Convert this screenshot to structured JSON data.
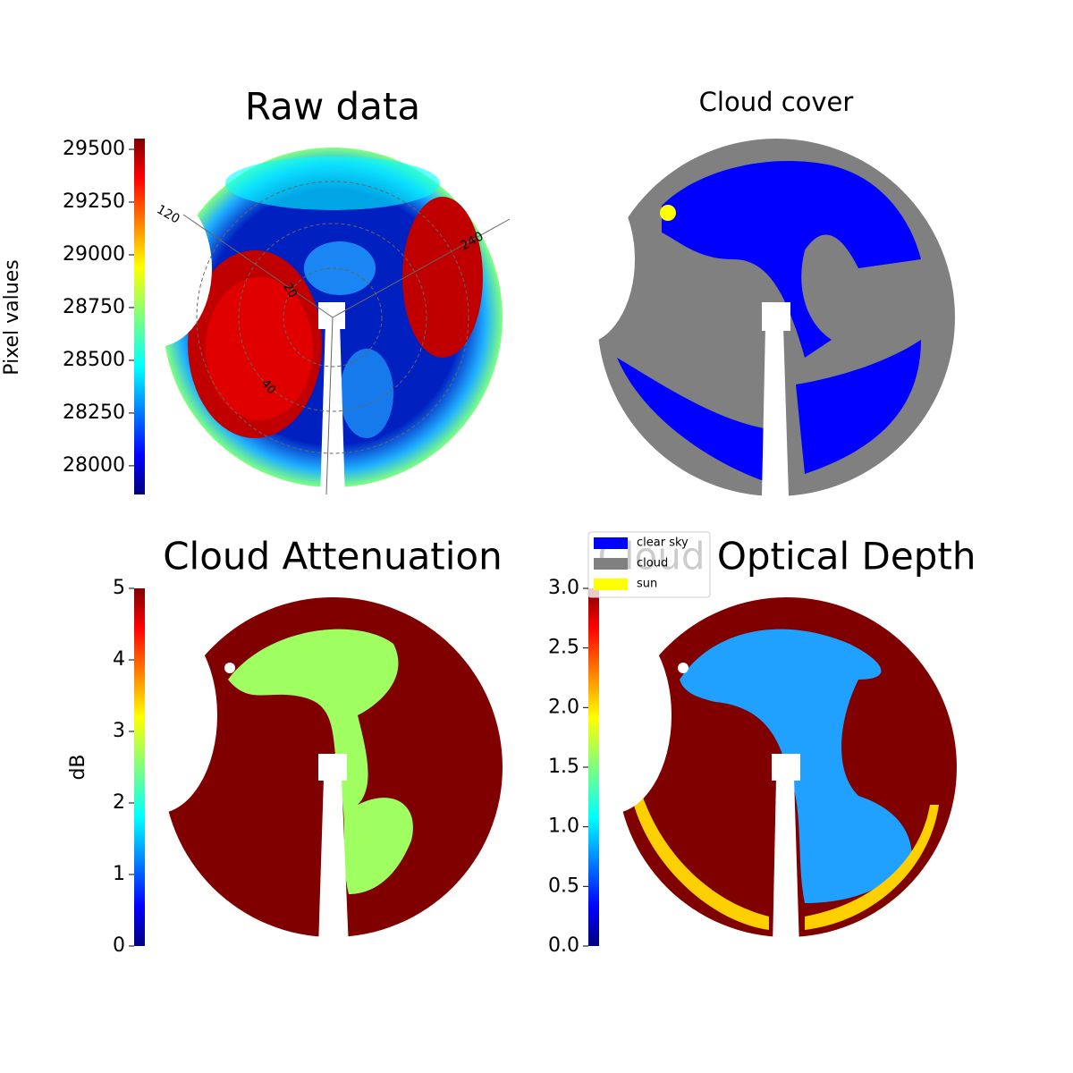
{
  "chart_data": [
    {
      "type": "image",
      "title": "Raw data",
      "ylabel": "Pixel values",
      "ylim": [
        27864,
        29551
      ],
      "yticks": [
        28000,
        28250,
        28500,
        28750,
        29000,
        29250,
        29500
      ],
      "annotations": [
        "120",
        "240",
        "20",
        "40"
      ]
    },
    {
      "type": "image",
      "title": "Cloud cover",
      "series": [
        {
          "name": "clear sky",
          "color": "#0000ff"
        },
        {
          "name": "cloud",
          "color": "#808080"
        },
        {
          "name": "sun",
          "color": "#ffff00"
        }
      ]
    },
    {
      "type": "image",
      "title": "Cloud Attenuation",
      "ylabel": "dB",
      "ylim": [
        0,
        5
      ],
      "yticks": [
        0,
        1,
        2,
        3,
        4,
        5
      ]
    },
    {
      "type": "image",
      "title": "Cloud Optical Depth",
      "ylim": [
        0,
        3
      ],
      "yticks": [
        {
          "value": 0,
          "label": "0.0"
        },
        {
          "value": 0.5,
          "label": "0.5"
        },
        {
          "value": 1,
          "label": "1.0"
        },
        {
          "value": 1.5,
          "label": "1.5"
        },
        {
          "value": 2,
          "label": "2.0"
        },
        {
          "value": 2.5,
          "label": "2.5"
        },
        {
          "value": 3,
          "label": "3.0"
        }
      ]
    }
  ]
}
